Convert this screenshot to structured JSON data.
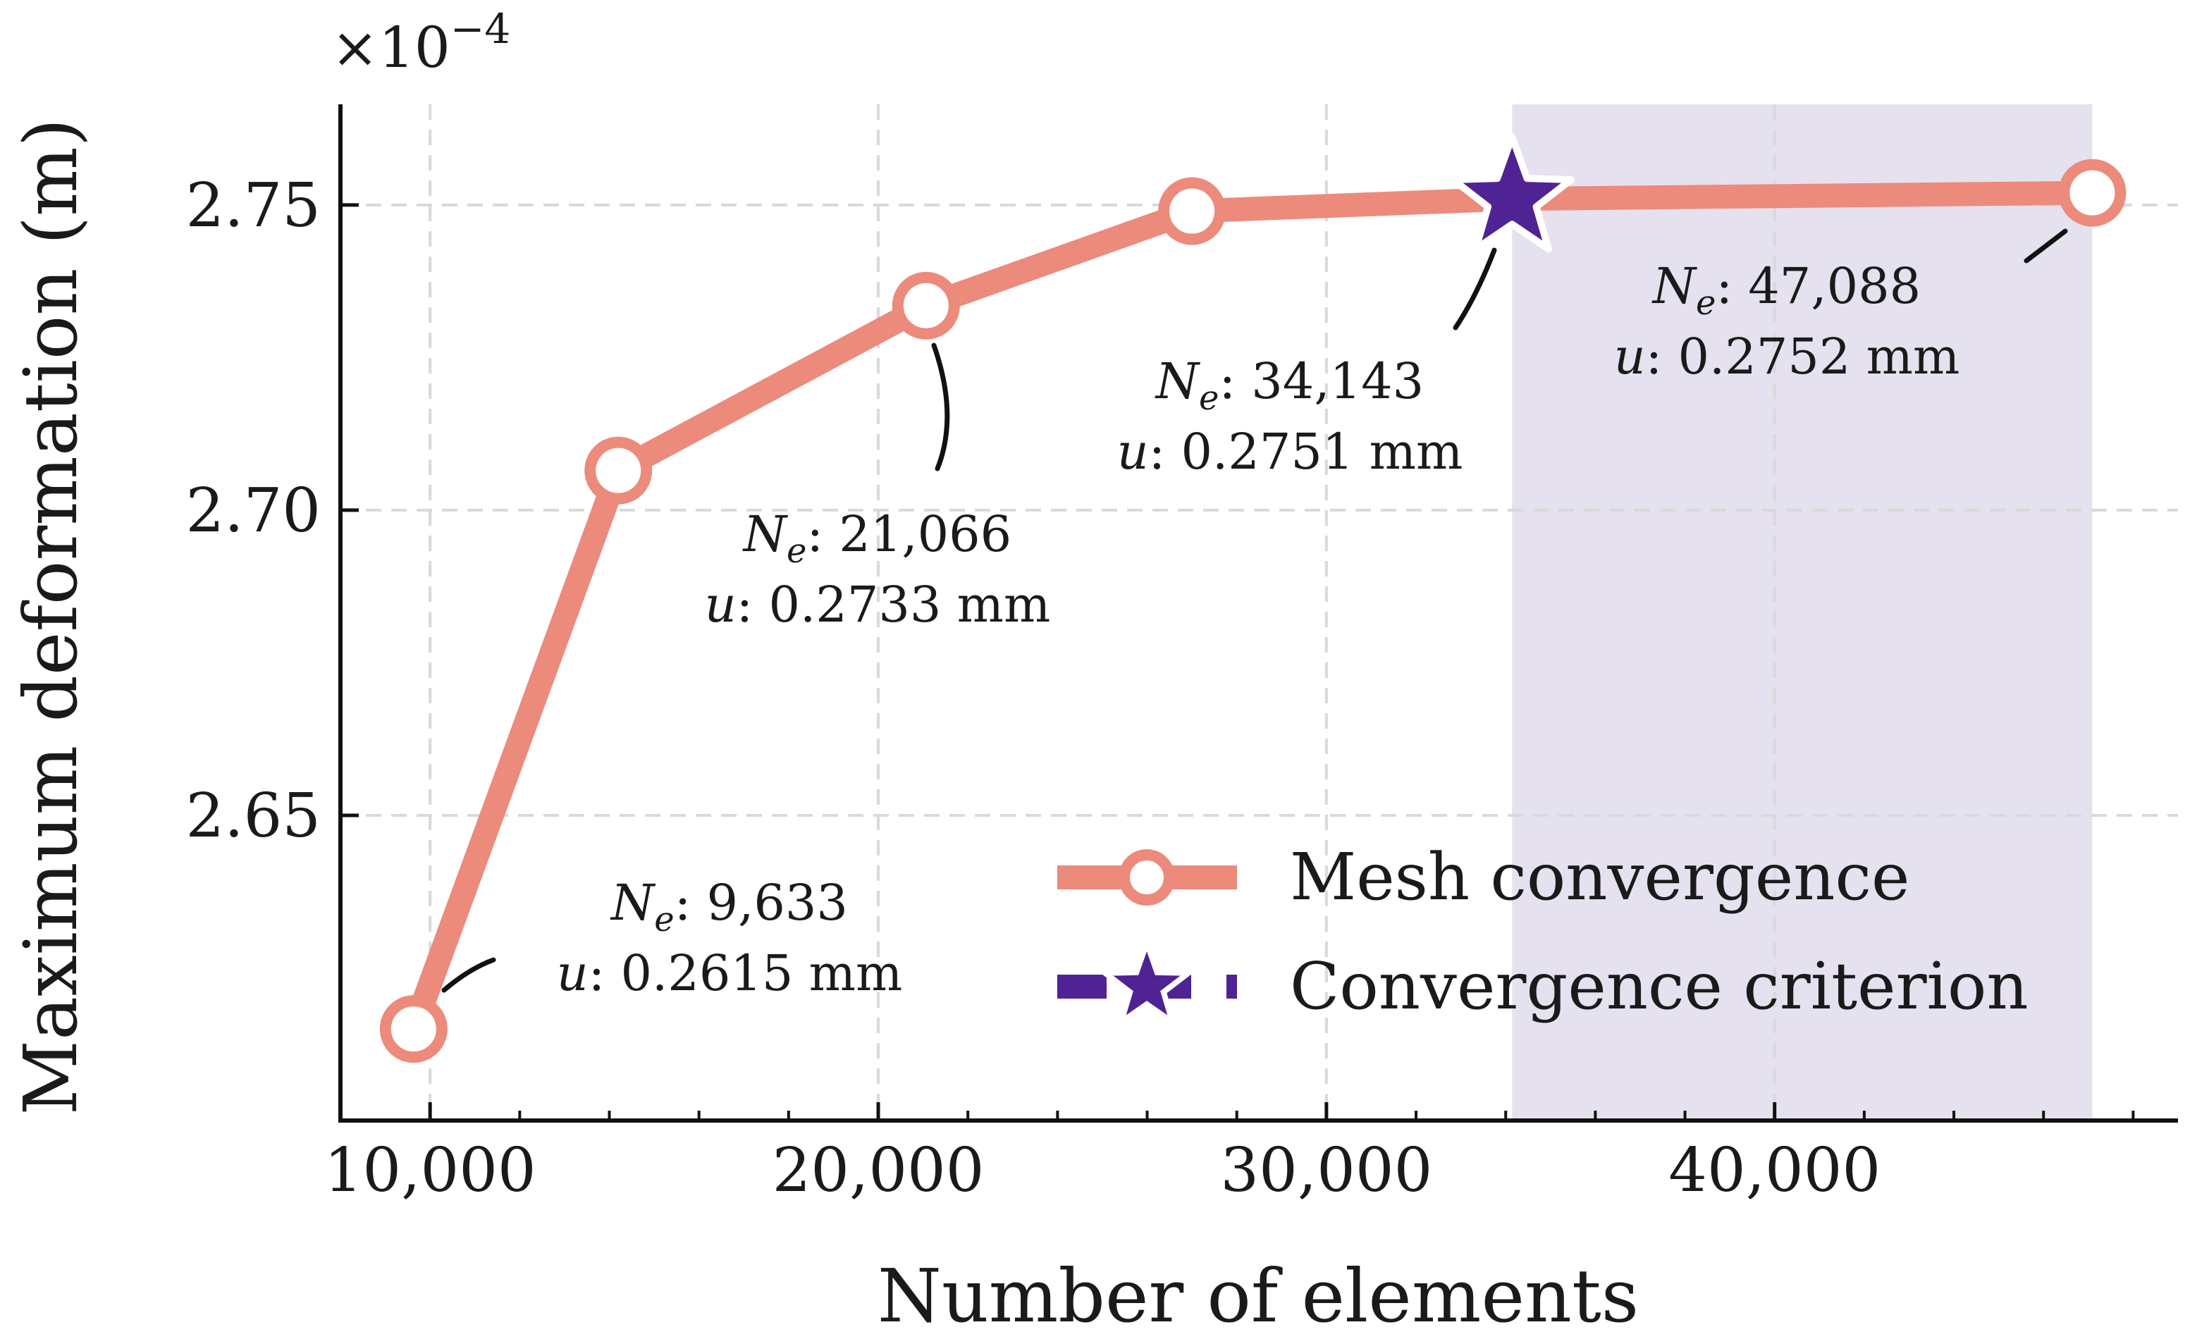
{
  "chart_data": {
    "type": "line",
    "xlabel": "Number of elements",
    "ylabel": "Maximum deformation (m)",
    "y_multiplier": {
      "base": "×10",
      "exponent": "−4"
    },
    "xlim": [
      8000,
      49000
    ],
    "ylim": [
      2.6,
      2.7665
    ],
    "x_ticks": [
      10000,
      20000,
      30000,
      40000
    ],
    "x_tick_labels": [
      "10,000",
      "20,000",
      "30,000",
      "40,000"
    ],
    "x_minor_ticks": [
      12000,
      14000,
      16000,
      18000,
      22000,
      24000,
      26000,
      28000,
      32000,
      34000,
      36000,
      38000,
      42000,
      44000,
      46000,
      48000
    ],
    "y_ticks": [
      2.65,
      2.7,
      2.75
    ],
    "y_tick_labels": [
      "2.65",
      "2.70",
      "2.75"
    ],
    "grid": true,
    "series": [
      {
        "name": "Mesh convergence",
        "color": "#ec8a7c",
        "marker": "circle",
        "x": [
          9633,
          14200,
          21066,
          27000,
          34143,
          47088
        ],
        "y": [
          2.615,
          2.7065,
          2.7335,
          2.749,
          2.751,
          2.752
        ]
      },
      {
        "name": "Convergence criterion",
        "color": "#4f2394",
        "marker": "star",
        "x": [
          34143
        ],
        "y": [
          2.751
        ]
      }
    ],
    "shaded_region": {
      "x_start": 34143,
      "x_end": 47088,
      "color": "#e6e1ee"
    },
    "annotations": [
      {
        "point_x": 9633,
        "point_y": 2.615,
        "ne_label": "N",
        "ne_sub": "e",
        "ne_value": ": 9,633",
        "u_label": "u",
        "u_value": ": 0.2615 mm"
      },
      {
        "point_x": 21066,
        "point_y": 2.7335,
        "ne_label": "N",
        "ne_sub": "e",
        "ne_value": ": 21,066",
        "u_label": "u",
        "u_value": ": 0.2733 mm"
      },
      {
        "point_x": 34143,
        "point_y": 2.751,
        "ne_label": "N",
        "ne_sub": "e",
        "ne_value": ": 34,143",
        "u_label": "u",
        "u_value": ": 0.2751 mm"
      },
      {
        "point_x": 47088,
        "point_y": 2.752,
        "ne_label": "N",
        "ne_sub": "e",
        "ne_value": ": 47,088",
        "u_label": "u",
        "u_value": ": 0.2752 mm"
      }
    ],
    "legend": {
      "location": "lower-right",
      "entries": [
        "Mesh convergence",
        "Convergence criterion"
      ]
    }
  }
}
